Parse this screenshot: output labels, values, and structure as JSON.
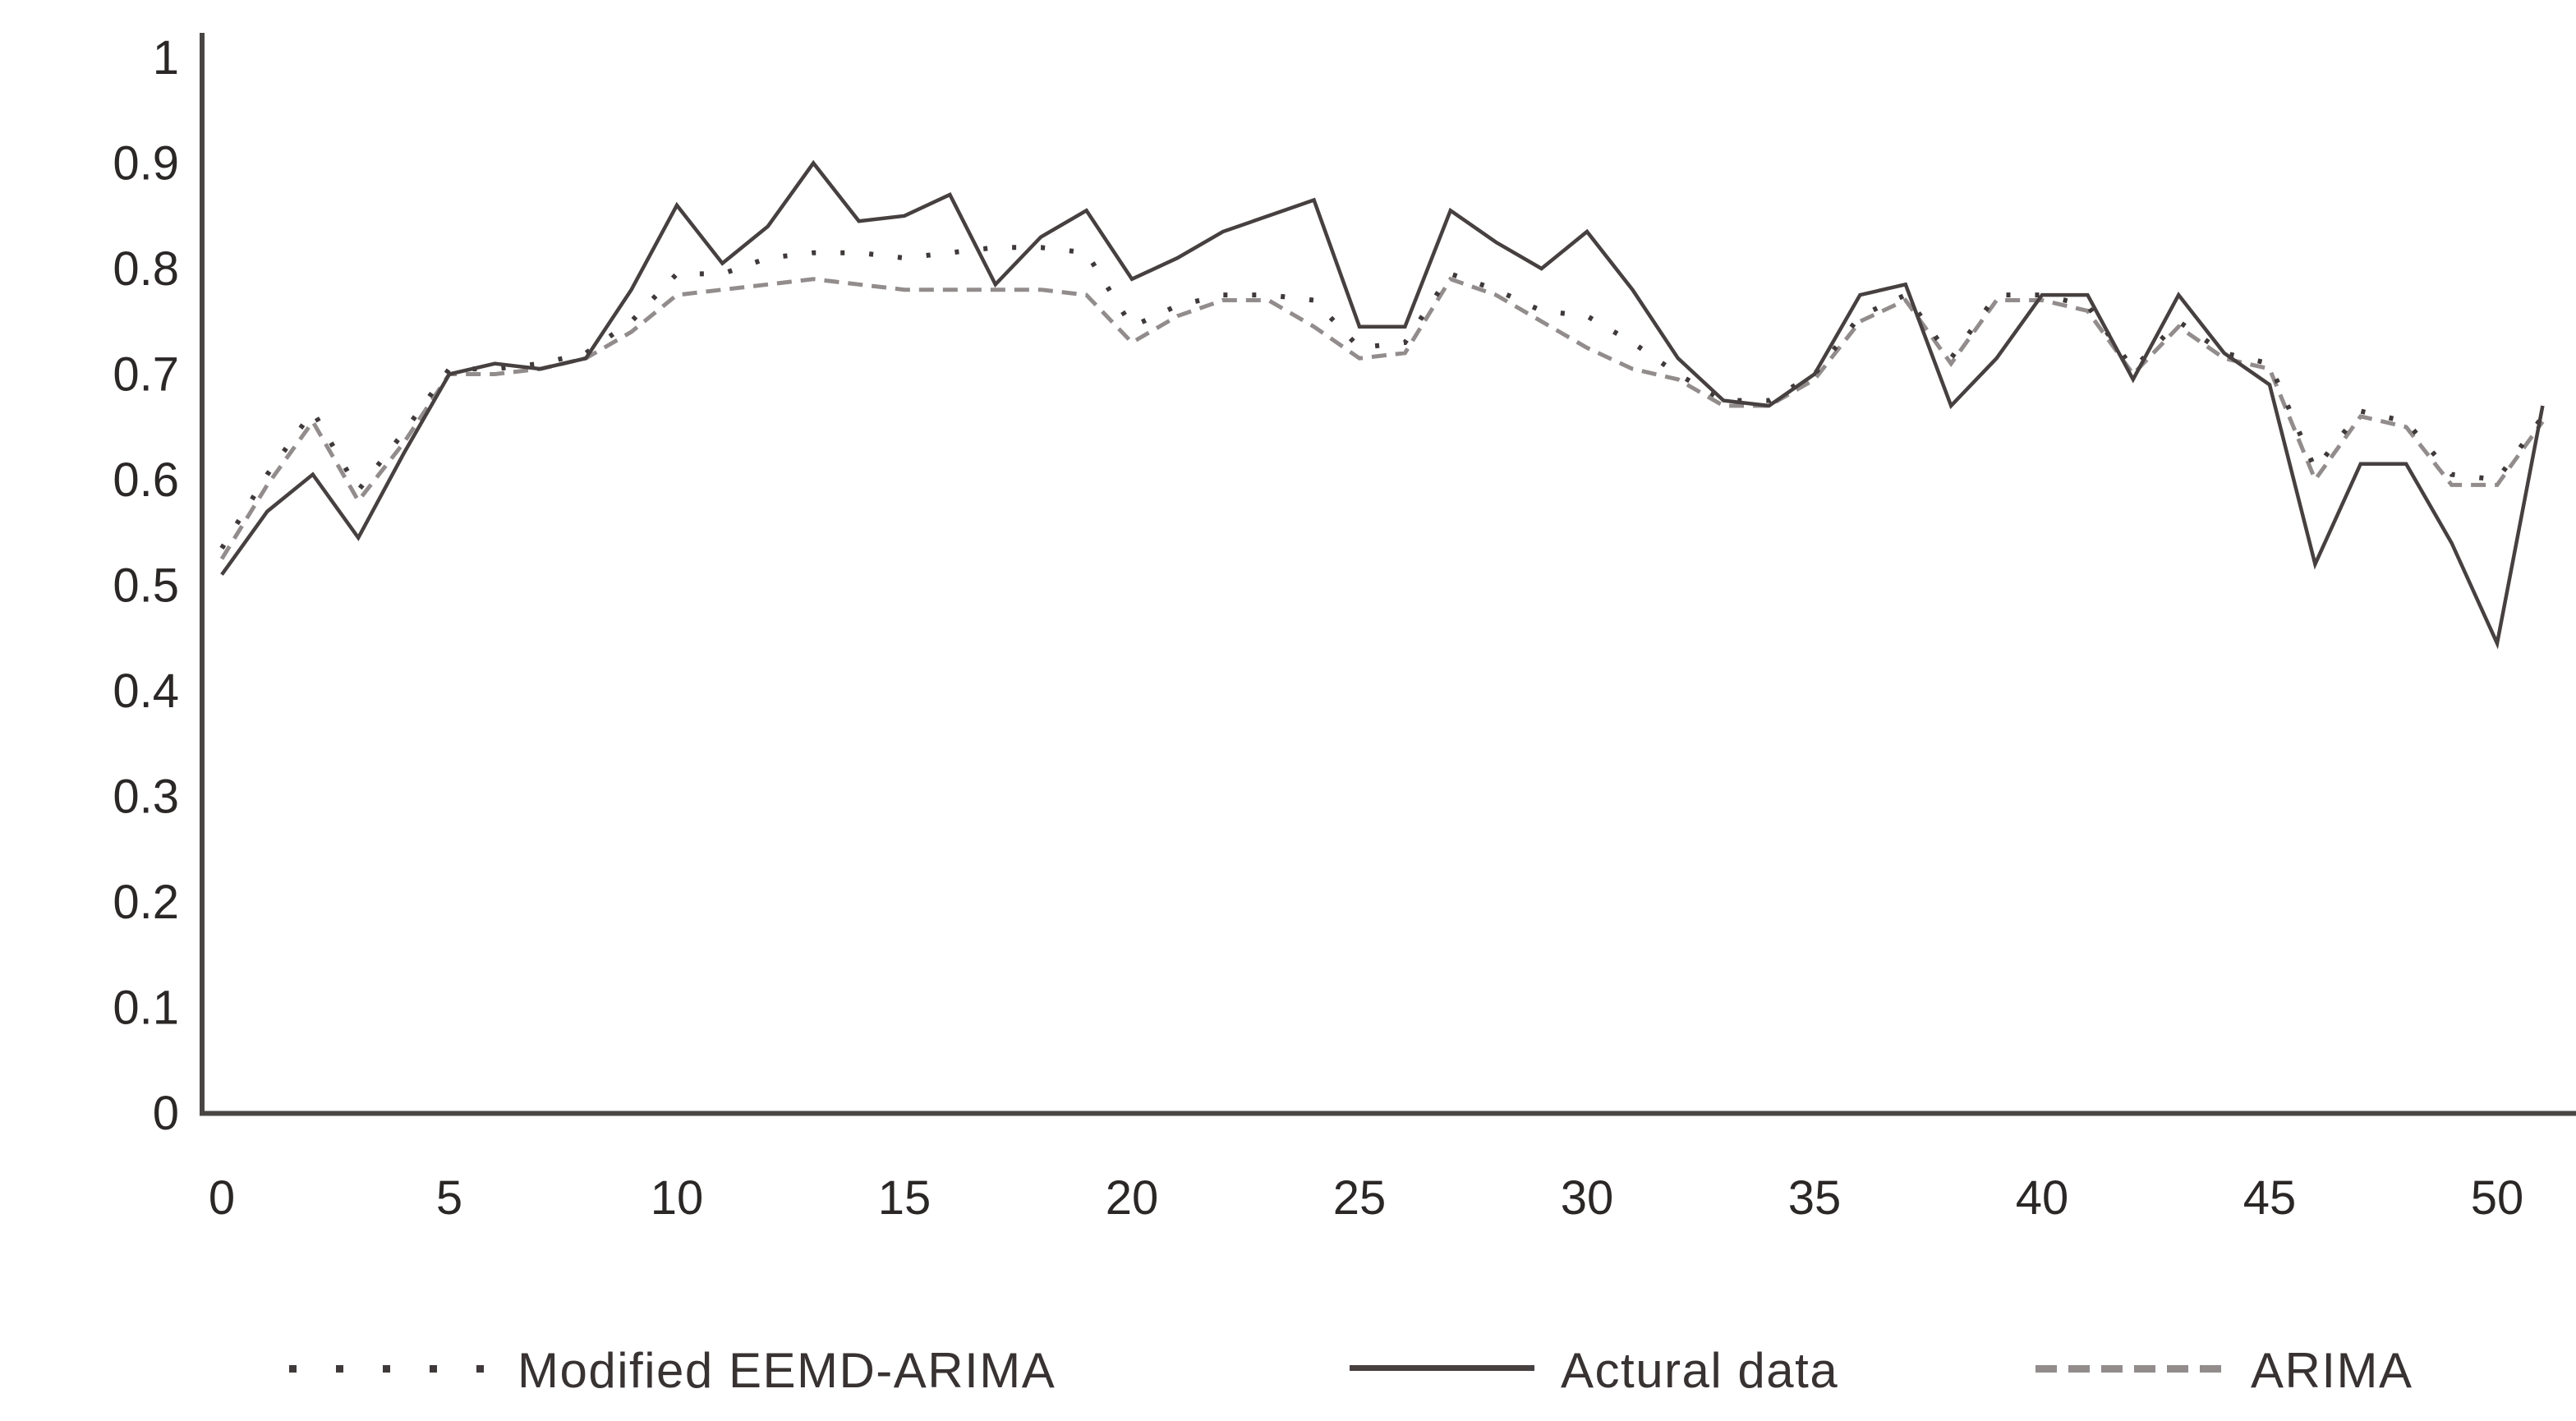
{
  "figure": {
    "background": "#ffffff",
    "axis_color": "#4a4545",
    "tick_label_color": "#2b2727"
  },
  "legend": {
    "items": [
      {
        "label": "Modified EEMD-ARIMA",
        "style": "dotted",
        "color": "#3f3939"
      },
      {
        "label": "Actural data",
        "style": "solid",
        "color": "#474040"
      },
      {
        "label": "ARIMA",
        "style": "dashed",
        "color": "#928c8c"
      }
    ]
  },
  "chart_data": {
    "type": "line",
    "title": "",
    "xlabel": "",
    "ylabel": "",
    "grid": false,
    "legend_position": "bottom",
    "xlim": [
      0,
      51.7
    ],
    "ylim": [
      0,
      1
    ],
    "x_ticks": [
      {
        "value": 0,
        "label": "0"
      },
      {
        "value": 5,
        "label": "5"
      },
      {
        "value": 10,
        "label": "10"
      },
      {
        "value": 15,
        "label": "15"
      },
      {
        "value": 20,
        "label": "20"
      },
      {
        "value": 25,
        "label": "25"
      },
      {
        "value": 30,
        "label": "30"
      },
      {
        "value": 35,
        "label": "35"
      },
      {
        "value": 40,
        "label": "40"
      },
      {
        "value": 45,
        "label": "45"
      },
      {
        "value": 50,
        "label": "50"
      }
    ],
    "y_ticks": [
      {
        "value": 0,
        "label": "0"
      },
      {
        "value": 0.1,
        "label": "0.1"
      },
      {
        "value": 0.2,
        "label": "0.2"
      },
      {
        "value": 0.3,
        "label": "0.3"
      },
      {
        "value": 0.4,
        "label": "0.4"
      },
      {
        "value": 0.5,
        "label": "0.5"
      },
      {
        "value": 0.6,
        "label": "0.6"
      },
      {
        "value": 0.7,
        "label": "0.7"
      },
      {
        "value": 0.8,
        "label": "0.8"
      },
      {
        "value": 0.9,
        "label": "0.9"
      },
      {
        "value": 1,
        "label": "1"
      }
    ],
    "x": [
      0,
      1,
      2,
      3,
      4,
      5,
      6,
      7,
      8,
      9,
      10,
      11,
      12,
      13,
      14,
      15,
      16,
      17,
      18,
      19,
      20,
      21,
      22,
      23,
      24,
      25,
      26,
      27,
      28,
      29,
      30,
      31,
      32,
      33,
      34,
      35,
      36,
      37,
      38,
      39,
      40,
      41,
      42,
      43,
      44,
      45,
      46,
      47,
      48,
      49,
      50,
      51
    ],
    "series": [
      {
        "name": "Modified EEMD-ARIMA",
        "color": "#3f3939",
        "dash": "5 30",
        "width": 6,
        "z": 2,
        "values": [
          0.535,
          0.605,
          0.665,
          0.59,
          0.645,
          0.705,
          0.705,
          0.71,
          0.72,
          0.75,
          0.795,
          0.795,
          0.81,
          0.815,
          0.815,
          0.81,
          0.815,
          0.82,
          0.82,
          0.815,
          0.745,
          0.765,
          0.775,
          0.775,
          0.77,
          0.725,
          0.73,
          0.795,
          0.78,
          0.76,
          0.755,
          0.73,
          0.7,
          0.675,
          0.675,
          0.7,
          0.755,
          0.775,
          0.715,
          0.775,
          0.775,
          0.765,
          0.705,
          0.75,
          0.72,
          0.71,
          0.61,
          0.665,
          0.655,
          0.605,
          0.6,
          0.66
        ]
      },
      {
        "name": "Actural data",
        "color": "#474040",
        "dash": "",
        "width": 4.5,
        "z": 3,
        "values": [
          0.51,
          0.57,
          0.605,
          0.545,
          0.625,
          0.7,
          0.71,
          0.705,
          0.715,
          0.78,
          0.86,
          0.805,
          0.84,
          0.9,
          0.845,
          0.85,
          0.87,
          0.785,
          0.83,
          0.855,
          0.79,
          0.81,
          0.835,
          0.85,
          0.865,
          0.745,
          0.745,
          0.855,
          0.825,
          0.8,
          0.835,
          0.78,
          0.715,
          0.675,
          0.67,
          0.7,
          0.775,
          0.785,
          0.67,
          0.715,
          0.775,
          0.775,
          0.695,
          0.775,
          0.72,
          0.69,
          0.52,
          0.615,
          0.615,
          0.54,
          0.445,
          0.67
        ]
      },
      {
        "name": "ARIMA",
        "color": "#928c8c",
        "dash": "18 11",
        "width": 5,
        "z": 1,
        "values": [
          0.525,
          0.595,
          0.655,
          0.58,
          0.635,
          0.7,
          0.7,
          0.705,
          0.715,
          0.74,
          0.775,
          0.78,
          0.785,
          0.79,
          0.785,
          0.78,
          0.78,
          0.78,
          0.78,
          0.775,
          0.73,
          0.755,
          0.77,
          0.77,
          0.745,
          0.715,
          0.72,
          0.79,
          0.775,
          0.75,
          0.725,
          0.705,
          0.695,
          0.67,
          0.67,
          0.695,
          0.75,
          0.77,
          0.71,
          0.77,
          0.77,
          0.76,
          0.7,
          0.745,
          0.715,
          0.705,
          0.6,
          0.66,
          0.65,
          0.595,
          0.595,
          0.655
        ]
      }
    ]
  }
}
